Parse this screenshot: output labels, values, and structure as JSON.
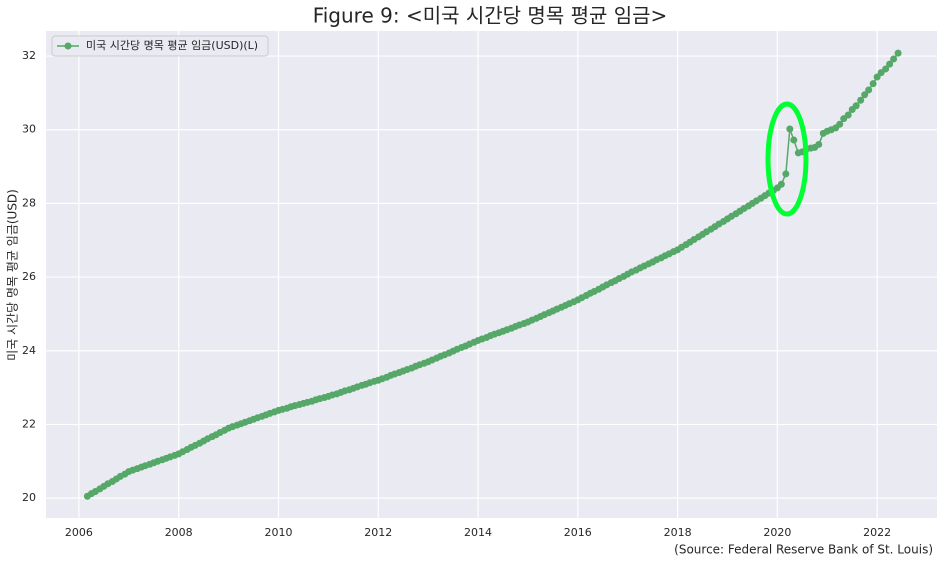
{
  "chart_data": {
    "type": "line",
    "title": "Figure 9: <미국 시간당 명목 평균 임금>",
    "y_label": "미국 시간당 명목 평균 임금(USD)",
    "source": "(Source: Federal Reserve Bank of St. Louis)",
    "legend_position": "upper left",
    "grid": true,
    "xlim": [
      2005.34,
      2023.2
    ],
    "ylim": [
      19.46,
      32.68
    ],
    "xticks": [
      2006,
      2008,
      2010,
      2012,
      2014,
      2016,
      2018,
      2020,
      2022
    ],
    "yticks": [
      20,
      22,
      24,
      26,
      28,
      30,
      32
    ],
    "x": [
      2006.17,
      2006.25,
      2006.33,
      2006.42,
      2006.5,
      2006.58,
      2006.67,
      2006.75,
      2006.83,
      2006.92,
      2007,
      2007.08,
      2007.17,
      2007.25,
      2007.33,
      2007.42,
      2007.5,
      2007.58,
      2007.67,
      2007.75,
      2007.83,
      2007.92,
      2008,
      2008.08,
      2008.17,
      2008.25,
      2008.33,
      2008.42,
      2008.5,
      2008.58,
      2008.67,
      2008.75,
      2008.83,
      2008.92,
      2009,
      2009.08,
      2009.17,
      2009.25,
      2009.33,
      2009.42,
      2009.5,
      2009.58,
      2009.67,
      2009.75,
      2009.83,
      2009.92,
      2010,
      2010.08,
      2010.17,
      2010.25,
      2010.33,
      2010.42,
      2010.5,
      2010.58,
      2010.67,
      2010.75,
      2010.83,
      2010.92,
      2011,
      2011.08,
      2011.17,
      2011.25,
      2011.33,
      2011.42,
      2011.5,
      2011.58,
      2011.67,
      2011.75,
      2011.83,
      2011.92,
      2012,
      2012.08,
      2012.17,
      2012.25,
      2012.33,
      2012.42,
      2012.5,
      2012.58,
      2012.67,
      2012.75,
      2012.83,
      2012.92,
      2013,
      2013.08,
      2013.17,
      2013.25,
      2013.33,
      2013.42,
      2013.5,
      2013.58,
      2013.67,
      2013.75,
      2013.83,
      2013.92,
      2014,
      2014.08,
      2014.17,
      2014.25,
      2014.33,
      2014.42,
      2014.5,
      2014.58,
      2014.67,
      2014.75,
      2014.83,
      2014.92,
      2015,
      2015.08,
      2015.17,
      2015.25,
      2015.33,
      2015.42,
      2015.5,
      2015.58,
      2015.67,
      2015.75,
      2015.83,
      2015.92,
      2016,
      2016.08,
      2016.17,
      2016.25,
      2016.33,
      2016.42,
      2016.5,
      2016.58,
      2016.67,
      2016.75,
      2016.83,
      2016.92,
      2017,
      2017.08,
      2017.17,
      2017.25,
      2017.33,
      2017.42,
      2017.5,
      2017.58,
      2017.67,
      2017.75,
      2017.83,
      2017.92,
      2018,
      2018.08,
      2018.17,
      2018.25,
      2018.33,
      2018.42,
      2018.5,
      2018.58,
      2018.67,
      2018.75,
      2018.83,
      2018.92,
      2019,
      2019.08,
      2019.17,
      2019.25,
      2019.33,
      2019.42,
      2019.5,
      2019.58,
      2019.67,
      2019.75,
      2019.83,
      2019.92,
      2020,
      2020.08,
      2020.17,
      2020.25,
      2020.33,
      2020.42,
      2020.5,
      2020.58,
      2020.67,
      2020.75,
      2020.83,
      2020.92,
      2021,
      2021.08,
      2021.17,
      2021.25,
      2021.33,
      2021.42,
      2021.5,
      2021.58,
      2021.67,
      2021.75,
      2021.83,
      2021.92,
      2022,
      2022.08,
      2022.17,
      2022.25,
      2022.33,
      2022.42
    ],
    "series": [
      {
        "name": "미국 시간당 명목 평균 임금(USD)(L)",
        "color": "#55a868",
        "values": [
          20.05,
          20.12,
          20.18,
          20.25,
          20.32,
          20.39,
          20.45,
          20.52,
          20.59,
          20.65,
          20.72,
          20.76,
          20.8,
          20.84,
          20.88,
          20.92,
          20.96,
          21.0,
          21.04,
          21.08,
          21.12,
          21.16,
          21.2,
          21.26,
          21.32,
          21.38,
          21.43,
          21.49,
          21.55,
          21.61,
          21.67,
          21.72,
          21.78,
          21.84,
          21.9,
          21.94,
          21.98,
          22.02,
          22.06,
          22.1,
          22.14,
          22.18,
          22.22,
          22.26,
          22.3,
          22.34,
          22.38,
          22.41,
          22.44,
          22.48,
          22.51,
          22.54,
          22.57,
          22.6,
          22.63,
          22.67,
          22.7,
          22.73,
          22.76,
          22.8,
          22.83,
          22.87,
          22.91,
          22.94,
          22.98,
          23.02,
          23.06,
          23.09,
          23.13,
          23.17,
          23.2,
          23.24,
          23.28,
          23.33,
          23.37,
          23.41,
          23.45,
          23.49,
          23.53,
          23.58,
          23.62,
          23.66,
          23.7,
          23.75,
          23.8,
          23.85,
          23.89,
          23.94,
          23.99,
          24.04,
          24.09,
          24.13,
          24.18,
          24.23,
          24.28,
          24.32,
          24.36,
          24.41,
          24.45,
          24.49,
          24.53,
          24.57,
          24.61,
          24.66,
          24.7,
          24.74,
          24.78,
          24.83,
          24.88,
          24.93,
          24.98,
          25.03,
          25.08,
          25.13,
          25.18,
          25.23,
          25.28,
          25.33,
          25.38,
          25.44,
          25.5,
          25.56,
          25.61,
          25.67,
          25.73,
          25.79,
          25.85,
          25.9,
          25.96,
          26.02,
          26.08,
          26.14,
          26.19,
          26.25,
          26.3,
          26.36,
          26.41,
          26.47,
          26.52,
          26.58,
          26.63,
          26.69,
          26.74,
          26.81,
          26.88,
          26.95,
          27.02,
          27.09,
          27.16,
          27.23,
          27.3,
          27.37,
          27.44,
          27.51,
          27.58,
          27.65,
          27.72,
          27.79,
          27.86,
          27.93,
          28.0,
          28.07,
          28.14,
          28.21,
          28.28,
          28.35,
          28.42,
          28.52,
          28.8,
          30.02,
          29.72,
          29.37,
          29.4,
          29.47,
          29.5,
          29.52,
          29.6,
          29.9,
          29.96,
          30.0,
          30.05,
          30.15,
          30.3,
          30.4,
          30.55,
          30.65,
          30.8,
          30.95,
          31.08,
          31.25,
          31.43,
          31.55,
          31.65,
          31.78,
          31.92,
          32.08
        ]
      }
    ]
  }
}
